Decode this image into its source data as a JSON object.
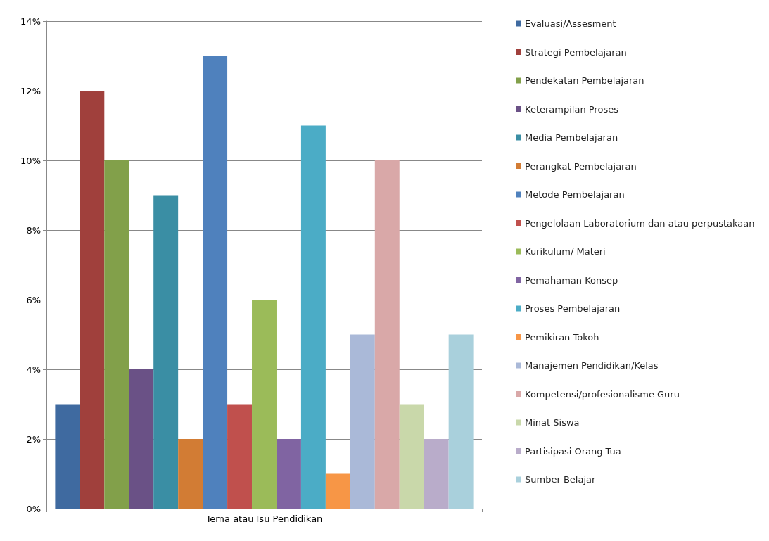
{
  "chart_data": {
    "type": "bar",
    "categories": [
      "Tema atau Isu Pendidikan"
    ],
    "series": [
      {
        "name": "Evaluasi/Assesment",
        "color": "#3f6aa0",
        "values": [
          3
        ]
      },
      {
        "name": "Strategi Pembelajaran",
        "color": "#a0403c",
        "values": [
          12
        ]
      },
      {
        "name": "Pendekatan Pembelajaran",
        "color": "#82a04a",
        "values": [
          10
        ]
      },
      {
        "name": "Keterampilan Proses",
        "color": "#6a5186",
        "values": [
          4
        ]
      },
      {
        "name": "Media Pembelajaran",
        "color": "#3a8ea4",
        "values": [
          9
        ]
      },
      {
        "name": "Perangkat Pembelajaran",
        "color": "#d27c34",
        "values": [
          2
        ]
      },
      {
        "name": "Metode Pembelajaran",
        "color": "#4f81bd",
        "values": [
          13
        ]
      },
      {
        "name": "Pengelolaan Laboratorium dan atau perpustakaan",
        "color": "#c0504d",
        "values": [
          3
        ]
      },
      {
        "name": "Kurikulum/ Materi",
        "color": "#9bbb59",
        "values": [
          6
        ]
      },
      {
        "name": "Pemahaman Konsep",
        "color": "#8064a2",
        "values": [
          2
        ]
      },
      {
        "name": "Proses Pembelajaran",
        "color": "#4bacc6",
        "values": [
          11
        ]
      },
      {
        "name": "Pemikiran Tokoh",
        "color": "#f79646",
        "values": [
          1
        ]
      },
      {
        "name": "Manajemen Pendidikan/Kelas",
        "color": "#aab9d8",
        "values": [
          5
        ]
      },
      {
        "name": "Kompetensi/profesionalisme Guru",
        "color": "#d9a8a8",
        "values": [
          10
        ]
      },
      {
        "name": "Minat Siswa",
        "color": "#c9d8aa",
        "values": [
          3
        ]
      },
      {
        "name": "Partisipasi Orang Tua",
        "color": "#b9acca",
        "values": [
          2
        ]
      },
      {
        "name": "Sumber Belajar",
        "color": "#a9d0dc",
        "values": [
          5
        ]
      }
    ],
    "ylim": [
      0,
      14
    ],
    "yticks": [
      {
        "value": 0,
        "label": "0%"
      },
      {
        "value": 2,
        "label": "2%"
      },
      {
        "value": 4,
        "label": "4%"
      },
      {
        "value": 6,
        "label": "6%"
      },
      {
        "value": 8,
        "label": "8%"
      },
      {
        "value": 10,
        "label": "10%"
      },
      {
        "value": 12,
        "label": "12%"
      },
      {
        "value": 14,
        "label": "14%"
      }
    ],
    "grid": "y",
    "legend": "right"
  }
}
